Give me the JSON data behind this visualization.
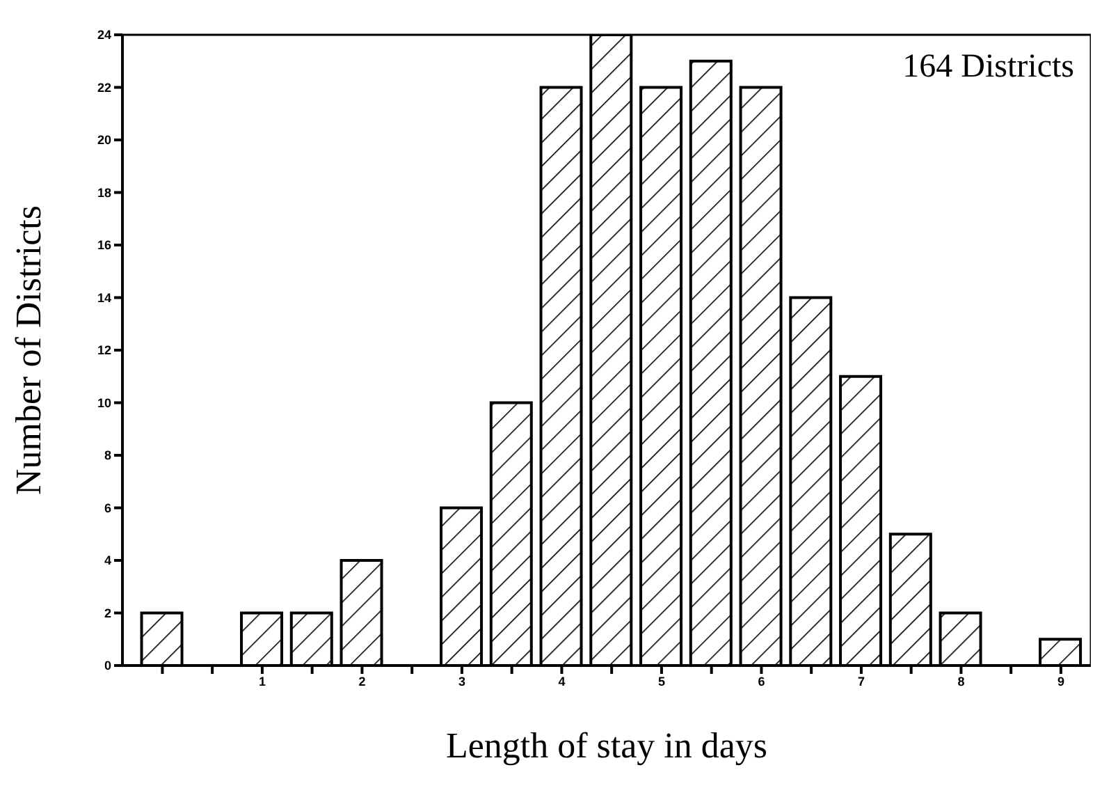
{
  "chart_data": {
    "type": "bar",
    "xlabel": "Length of stay in days",
    "ylabel": "Number of Districts",
    "annotations": [
      "164 Districts"
    ],
    "x": [
      0,
      1,
      1.5,
      2,
      3,
      3.5,
      4,
      4.5,
      5,
      5.5,
      6,
      6.5,
      7,
      7.5,
      8,
      9
    ],
    "values": [
      2,
      2,
      2,
      4,
      6,
      10,
      22,
      24,
      22,
      23,
      22,
      14,
      11,
      5,
      2,
      1
    ],
    "color": "#000000",
    "xlim": [
      -0.4,
      9.3
    ],
    "xticks": [
      {
        "value": 0,
        "label": null
      },
      {
        "value": 0.5,
        "label": null
      },
      1,
      {
        "value": 1.5,
        "label": null
      },
      2,
      {
        "value": 2.5,
        "label": null
      },
      3,
      {
        "value": 3.5,
        "label": null
      },
      4,
      {
        "value": 4.5,
        "label": null
      },
      5,
      {
        "value": 5.5,
        "label": null
      },
      6,
      {
        "value": 6.5,
        "label": null
      },
      7,
      {
        "value": 7.5,
        "label": null
      },
      8,
      {
        "value": 8.5,
        "label": null
      },
      9
    ],
    "ylim": [
      0,
      24
    ],
    "yticks": [
      0,
      2,
      4,
      6,
      8,
      10,
      12,
      14,
      16,
      18,
      20,
      22,
      24
    ],
    "grid": false,
    "legend": false
  }
}
